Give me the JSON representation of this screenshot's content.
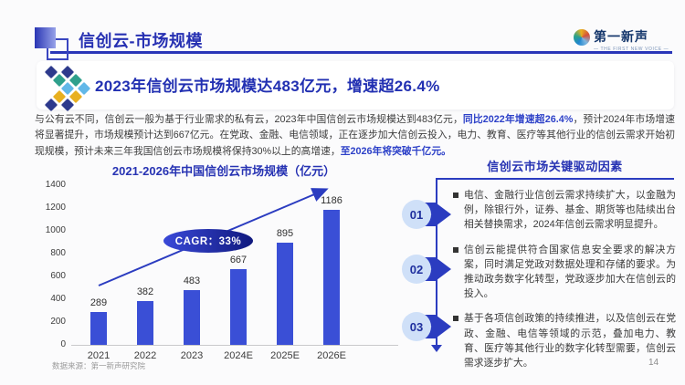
{
  "header": {
    "title": "信创云-市场规模",
    "logo_text": "第一新声",
    "logo_tagline": "— THE FIRST NEW VOICE —"
  },
  "banner": {
    "headline": "2023年信创云市场规模达483亿元，增速超26.4%"
  },
  "body": {
    "segments": [
      {
        "text": "与公有云不同，信创云一般为基于行业需求的私有云，2023年中国信创云市场规模达到483亿元，",
        "highlight": false
      },
      {
        "text": "同比2022年增速超26.4%",
        "highlight": true
      },
      {
        "text": "，预计2024年市场增速将显著提升，市场规模预计达到667亿元。在党政、金融、电信领域，正在逐步加大信创云投入，电力、教育、医疗等其他行业的信创云需求开始初现规模，预计未来三年我国信创云市场规模将保持30%以上的高增速，",
        "highlight": false
      },
      {
        "text": "至2026年将突破千亿元。",
        "highlight": true
      }
    ]
  },
  "chart_data": {
    "type": "bar",
    "title": "2021-2026年中国信创云市场规模（亿元）",
    "categories": [
      "2021",
      "2022",
      "2023",
      "2024E",
      "2025E",
      "2026E"
    ],
    "values": [
      289,
      382,
      483,
      667,
      895,
      1186
    ],
    "xlabel": "",
    "ylabel": "",
    "ylim": [
      0,
      1400
    ],
    "yticks": [
      0,
      200,
      400,
      600,
      800,
      1000,
      1200,
      1400
    ],
    "grid": false,
    "legend": false,
    "bar_color": "#3a4fd6",
    "annotation": "CAGR：33%",
    "trend_arrow": true
  },
  "drivers": {
    "title": "信创云市场关键驱动因素",
    "items": [
      {
        "number": "01",
        "text": "电信、金融行业信创云需求持续扩大，以金融为例，除银行外，证券、基金、期货等也陆续出台相关替换需求，2024年信创云需求明显提升。"
      },
      {
        "number": "02",
        "text": "信创云能提供符合国家信息安全要求的解决方案，同时满足党政对数据处理和存储的要求。为推动政务数字化转型，党政逐步加大在信创云的投入。"
      },
      {
        "number": "03",
        "text": "基于各项信创政策的持续推进，以及信创云在党政、金融、电信等领域的示范，叠加电力、教育、医疗等其他行业的数字化转型需要，信创云需求逐步扩大。"
      }
    ]
  },
  "footer": {
    "source": "数据来源：第一新声研究院",
    "page_number": "14"
  },
  "colors": {
    "accent_blue": "#2733b3",
    "header_line": "#2a36b8",
    "bar_blue": "#3a4fd6",
    "highlight_text": "#2d41c8",
    "marker_circle_bg": "#cfe0f8",
    "marker_chevron": "#2b3cc0",
    "diamond_navy": "#2d3a8c",
    "diamond_teal": "#2fa08c",
    "diamond_lightblue": "#62b8e8",
    "diamond_yellow": "#e8b020"
  }
}
